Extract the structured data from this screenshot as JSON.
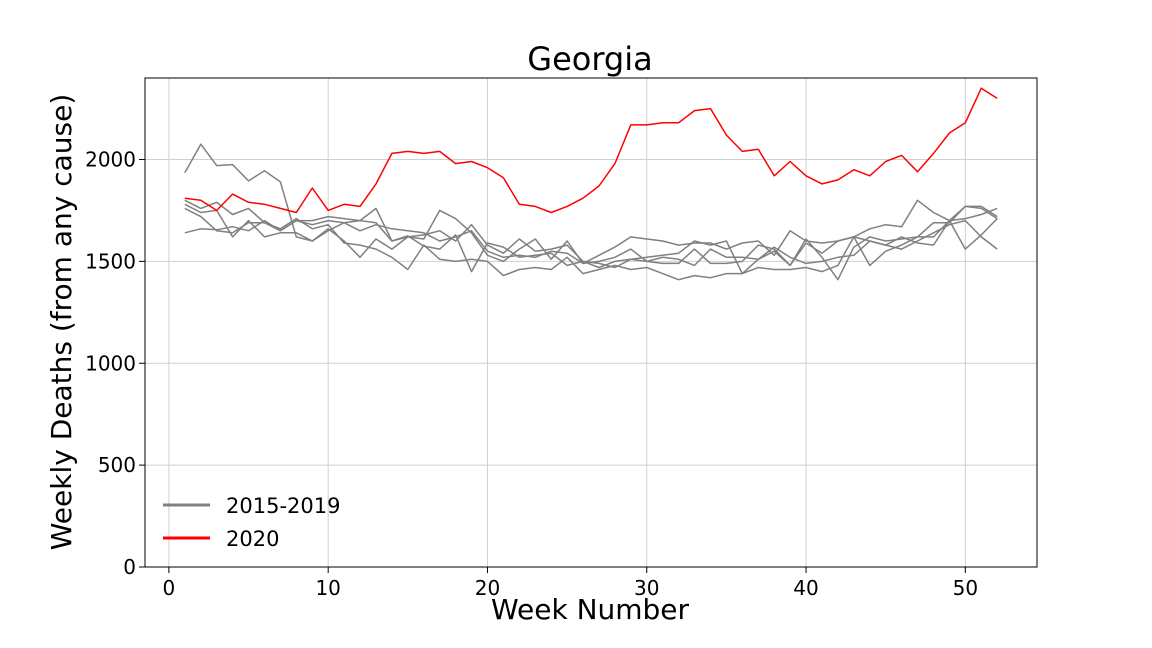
{
  "chart_data": {
    "type": "line",
    "title": "Georgia",
    "xlabel": "Week Number",
    "ylabel": "Weekly Deaths (from any cause)",
    "xlim": [
      -1.5,
      54.5
    ],
    "ylim": [
      0,
      2400
    ],
    "xticks": [
      0,
      10,
      20,
      30,
      40,
      50
    ],
    "yticks": [
      0,
      500,
      1000,
      1500,
      2000
    ],
    "grid": true,
    "legend_position": "lower-left",
    "legend": [
      {
        "label": "2015-2019",
        "color": "#808080"
      },
      {
        "label": "2020",
        "color": "#ff0000"
      }
    ],
    "x": [
      1,
      2,
      3,
      4,
      5,
      6,
      7,
      8,
      9,
      10,
      11,
      12,
      13,
      14,
      15,
      16,
      17,
      18,
      19,
      20,
      21,
      22,
      23,
      24,
      25,
      26,
      27,
      28,
      29,
      30,
      31,
      32,
      33,
      34,
      35,
      36,
      37,
      38,
      39,
      40,
      41,
      42,
      43,
      44,
      45,
      46,
      47,
      48,
      49,
      50,
      51,
      52
    ],
    "series": [
      {
        "color": "#808080",
        "values": [
          1935,
          2075,
          1970,
          1975,
          1895,
          1945,
          1890,
          1620,
          1600,
          1650,
          1690,
          1700,
          1690,
          1600,
          1625,
          1575,
          1560,
          1630,
          1450,
          1590,
          1570,
          1520,
          1530,
          1540,
          1480,
          1500,
          1470,
          1500,
          1510,
          1520,
          1530,
          1540,
          1600,
          1580,
          1600,
          1440,
          1510,
          1550,
          1480,
          1590,
          1540,
          1600,
          1620,
          1600,
          1580,
          1620,
          1590,
          1580,
          1700,
          1770,
          1760,
          1710
        ]
      },
      {
        "color": "#808080",
        "values": [
          1800,
          1760,
          1790,
          1730,
          1760,
          1690,
          1650,
          1700,
          1700,
          1720,
          1710,
          1700,
          1760,
          1600,
          1620,
          1610,
          1750,
          1710,
          1640,
          1530,
          1500,
          1560,
          1610,
          1510,
          1600,
          1490,
          1530,
          1570,
          1620,
          1610,
          1600,
          1580,
          1590,
          1590,
          1560,
          1590,
          1600,
          1530,
          1650,
          1600,
          1590,
          1600,
          1620,
          1660,
          1680,
          1670,
          1800,
          1740,
          1700,
          1710,
          1730,
          1760
        ]
      },
      {
        "color": "#808080",
        "values": [
          1640,
          1660,
          1655,
          1670,
          1650,
          1700,
          1650,
          1700,
          1680,
          1700,
          1690,
          1650,
          1680,
          1660,
          1650,
          1640,
          1600,
          1620,
          1650,
          1550,
          1520,
          1530,
          1520,
          1550,
          1540,
          1490,
          1500,
          1520,
          1560,
          1500,
          1520,
          1510,
          1480,
          1560,
          1520,
          1520,
          1510,
          1570,
          1520,
          1490,
          1500,
          1520,
          1530,
          1600,
          1580,
          1560,
          1600,
          1640,
          1680,
          1700,
          1620,
          1560
        ]
      },
      {
        "color": "#808080",
        "values": [
          1760,
          1720,
          1650,
          1640,
          1690,
          1690,
          1660,
          1710,
          1660,
          1680,
          1590,
          1580,
          1560,
          1520,
          1460,
          1580,
          1510,
          1500,
          1510,
          1500,
          1430,
          1460,
          1470,
          1460,
          1520,
          1440,
          1460,
          1480,
          1460,
          1470,
          1440,
          1410,
          1430,
          1420,
          1440,
          1440,
          1470,
          1460,
          1460,
          1470,
          1450,
          1480,
          1620,
          1480,
          1550,
          1580,
          1620,
          1620,
          1700,
          1560,
          1630,
          1710
        ]
      },
      {
        "color": "#808080",
        "values": [
          1780,
          1740,
          1750,
          1620,
          1700,
          1620,
          1640,
          1640,
          1600,
          1660,
          1600,
          1520,
          1610,
          1560,
          1620,
          1630,
          1650,
          1600,
          1680,
          1580,
          1540,
          1610,
          1550,
          1560,
          1580,
          1500,
          1490,
          1470,
          1510,
          1500,
          1490,
          1490,
          1560,
          1490,
          1490,
          1500,
          1580,
          1560,
          1480,
          1610,
          1520,
          1410,
          1570,
          1620,
          1600,
          1610,
          1620,
          1690,
          1690,
          1770,
          1770,
          1720
        ]
      },
      {
        "color": "#ff0000",
        "values": [
          1810,
          1800,
          1750,
          1830,
          1790,
          1780,
          1760,
          1740,
          1860,
          1750,
          1780,
          1770,
          1880,
          2030,
          2040,
          2030,
          2040,
          1980,
          1990,
          1960,
          1910,
          1780,
          1770,
          1740,
          1770,
          1810,
          1870,
          1980,
          2170,
          2170,
          2180,
          2180,
          2240,
          2250,
          2120,
          2040,
          2050,
          1920,
          1990,
          1920,
          1880,
          1900,
          1950,
          1920,
          1990,
          2020,
          1940,
          2030,
          2130,
          2180,
          2350,
          2300
        ]
      }
    ]
  }
}
